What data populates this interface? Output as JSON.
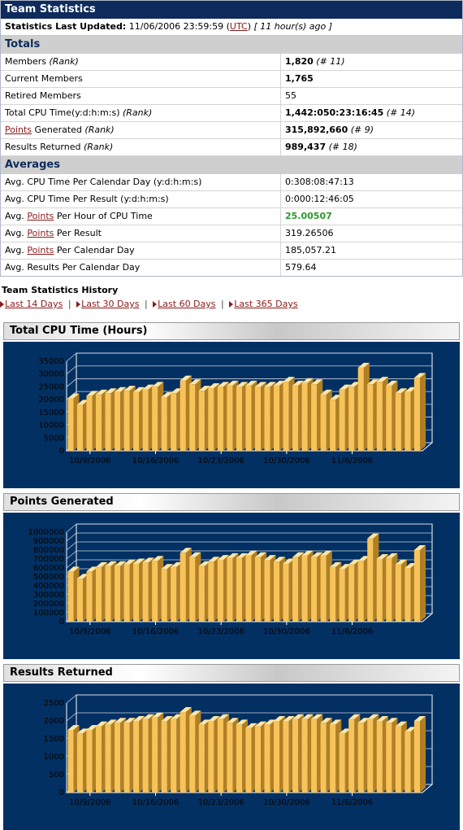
{
  "header": {
    "title": "Team Statistics"
  },
  "updated": {
    "label": "Statistics Last Updated:",
    "date": "11/06/2006 23:59:59",
    "tz_open": "(",
    "tz": "UTC",
    "tz_close": ")",
    "ago": "[ 11 hour(s) ago ]"
  },
  "totals": {
    "heading": "Totals",
    "members": {
      "label": "Members",
      "sub": "(Rank)",
      "value": "1,820",
      "rank": "(# 11)"
    },
    "current": {
      "label": "Current Members",
      "value": "1,765"
    },
    "retired": {
      "label": "Retired Members",
      "value": "55"
    },
    "cpu": {
      "label": "Total CPU Time(y:d:h:m:s)",
      "sub": "(Rank)",
      "value": "1,442:050:23:16:45",
      "rank": "(# 14)"
    },
    "points": {
      "link": "Points",
      "label": " Generated",
      "sub": "(Rank)",
      "value": "315,892,660",
      "rank": "(# 9)"
    },
    "results": {
      "label": "Results Returned",
      "sub": "(Rank)",
      "value": "989,437",
      "rank": "(# 18)"
    }
  },
  "averages": {
    "heading": "Averages",
    "cpu_day": {
      "label": "Avg. CPU Time Per Calendar Day (y:d:h:m:s)",
      "value": "0:308:08:47:13"
    },
    "cpu_result": {
      "label": "Avg. CPU Time Per Result (y:d:h:m:s)",
      "value": "0:000:12:46:05"
    },
    "points_hour": {
      "pre": "Avg. ",
      "link": "Points",
      "post": " Per Hour of CPU Time",
      "value": "25.00507"
    },
    "points_result": {
      "pre": "Avg. ",
      "link": "Points",
      "post": " Per Result",
      "value": "319.26506"
    },
    "points_day": {
      "pre": "Avg. ",
      "link": "Points",
      "post": " Per Calendar Day",
      "value": "185,057.21"
    },
    "results_day": {
      "label": "Avg. Results Per Calendar Day",
      "value": "579.64"
    }
  },
  "history": {
    "title": "Team Statistics History",
    "links": [
      "Last 14 Days",
      "Last 30 Days",
      "Last 60 Days",
      "Last 365 Days"
    ],
    "separator": "|"
  },
  "colors": {
    "header_bg": "#0d2b5c",
    "chart_bg": "#023062",
    "bar": "#f7c35a",
    "link": "#8b1a1a",
    "green": "#2a9a2a"
  },
  "chart_data": [
    {
      "type": "bar",
      "title": "Total CPU Time (Hours)",
      "ylim": [
        0,
        35000
      ],
      "yticks": [
        "35000",
        "30000",
        "25000",
        "20000",
        "15000",
        "10000",
        "5000",
        "0"
      ],
      "xticks": [
        "10/9/2006",
        "10/16/2006",
        "10/23/2006",
        "10/30/2006",
        "11/6/2006"
      ],
      "values": [
        20500,
        18000,
        21500,
        22000,
        22500,
        23000,
        23500,
        23000,
        24000,
        25000,
        21000,
        22500,
        27500,
        26000,
        23500,
        24500,
        25000,
        25500,
        25000,
        25500,
        25000,
        25000,
        25500,
        27000,
        25500,
        26500,
        26000,
        22000,
        20000,
        24000,
        25000,
        32500,
        26000,
        27000,
        25500,
        22500,
        23000,
        28500
      ]
    },
    {
      "type": "bar",
      "title": "Points Generated",
      "ylim": [
        0,
        1000000
      ],
      "yticks": [
        "1000000",
        "900000",
        "800000",
        "700000",
        "600000",
        "500000",
        "400000",
        "300000",
        "200000",
        "100000",
        "0"
      ],
      "xticks": [
        "10/9/2006",
        "10/16/2006",
        "10/23/2006",
        "10/30/2006",
        "11/6/2006"
      ],
      "values": [
        560000,
        480000,
        560000,
        610000,
        620000,
        620000,
        640000,
        650000,
        660000,
        680000,
        590000,
        610000,
        770000,
        720000,
        620000,
        670000,
        690000,
        710000,
        710000,
        740000,
        720000,
        690000,
        670000,
        650000,
        720000,
        740000,
        720000,
        740000,
        610000,
        590000,
        640000,
        680000,
        930000,
        700000,
        710000,
        640000,
        600000,
        800000
      ]
    },
    {
      "type": "bar",
      "title": "Results Returned",
      "ylim": [
        0,
        2500
      ],
      "yticks": [
        "2500",
        "2000",
        "1500",
        "1000",
        "500",
        "0"
      ],
      "xticks": [
        "10/9/2006",
        "10/16/2006",
        "10/23/2006",
        "10/30/2006",
        "11/6/2006"
      ],
      "values": [
        1750,
        1650,
        1750,
        1850,
        1900,
        1950,
        1950,
        2000,
        2050,
        2100,
        2000,
        2050,
        2250,
        2150,
        1900,
        2000,
        2050,
        1950,
        1900,
        1800,
        1850,
        1900,
        2000,
        2000,
        2050,
        2050,
        2050,
        1950,
        1900,
        1650,
        2050,
        1950,
        2050,
        2000,
        1950,
        1850,
        1700,
        2000
      ]
    }
  ]
}
